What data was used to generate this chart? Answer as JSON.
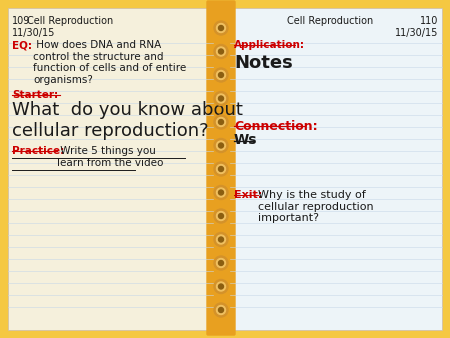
{
  "bg_color": "#F5C842",
  "page_color": "#F5F0DC",
  "right_page_color": "#EDF4F8",
  "line_color": "#C8D8E8",
  "spine_color": "#E8A020",
  "left_page_num": "109",
  "right_page_num": "110",
  "page_title": "Cell Reproduction",
  "date": "11/30/15",
  "eq_label": "EQ:",
  "eq_text": " How does DNA and RNA\ncontrol the structure and\nfunction of cells and of entire\norganisms?",
  "starter_label": "Starter:",
  "starter_text": "What  do you know about\ncellular reproduction?",
  "practice_label": "Practice:",
  "practice_text": " Write 5 things you\nlearn from the video",
  "application_label": "Application:",
  "application_text": "Notes",
  "connection_label": "Connection:",
  "connection_text": "Ws",
  "exit_label": "Exit:",
  "exit_text": "Why is the study of\ncellular reproduction\nimportant?",
  "red_color": "#CC0000",
  "black_color": "#1A1A1A",
  "spine_dot_color": "#D4922A",
  "spine_dot_highlight": "#F0C060",
  "spine_dot_dark": "#8B5E10"
}
